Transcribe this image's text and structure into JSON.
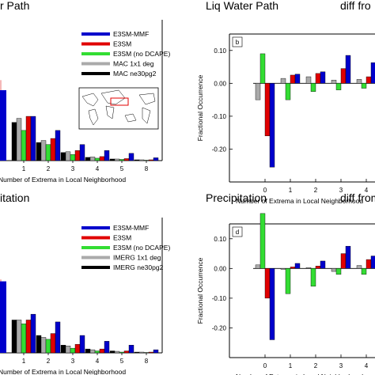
{
  "colors": {
    "blue": "#0000cc",
    "red": "#e00000",
    "green": "#33dd33",
    "gray": "#aaaaaa",
    "black": "#000000",
    "pink": "#f5b8b8",
    "map_box": "#e00000"
  },
  "chart_data": [
    {
      "id": "a",
      "type": "bar",
      "title": "r Path",
      "xlabel": "Number of Extrema in Local Neighborhood",
      "ylabel": "",
      "categories": [
        "1",
        "2",
        "3",
        "4",
        "5",
        "8"
      ],
      "ylim": [
        0,
        0.35
      ],
      "legend_placement": "top-right",
      "inset_map": true,
      "series": [
        {
          "name": "MAC ne30pg2",
          "color_key": "black",
          "values": [
            0.095,
            0.045,
            0.02,
            0.008,
            0.004,
            0.002
          ]
        },
        {
          "name": "MAC 1x1 deg",
          "color_key": "gray",
          "values": [
            0.105,
            0.05,
            0.022,
            0.009,
            0.004,
            0.002
          ]
        },
        {
          "name": "E3SM (no DCAPE)",
          "color_key": "green",
          "values": [
            0.075,
            0.04,
            0.015,
            0.006,
            0.003,
            0.001
          ]
        },
        {
          "name": "E3SM",
          "color_key": "red",
          "values": [
            0.11,
            0.055,
            0.025,
            0.01,
            0.005,
            0.002
          ]
        },
        {
          "name": "E3SM-MMF",
          "color_key": "blue",
          "values": [
            0.11,
            0.075,
            0.04,
            0.025,
            0.018,
            0.007
          ]
        }
      ],
      "partial_bars": {
        "pink": 0.2,
        "blue": 0.175
      }
    },
    {
      "id": "b",
      "type": "bar",
      "title": "Liq Water Path",
      "title_right": "diff fro",
      "letter": "b",
      "xlabel": "Number of Extrema in Local Neighborhood",
      "ylabel": "Fractional Occurrence",
      "categories": [
        "0",
        "1",
        "2",
        "3",
        "4"
      ],
      "yticks": [
        "0.10",
        "0.00",
        "-0.10",
        "-0.20"
      ],
      "ylim": [
        -0.3,
        0.15
      ],
      "series": [
        {
          "name": "gray",
          "color_key": "gray",
          "values": [
            -0.05,
            0.015,
            0.02,
            0.01,
            0.012
          ]
        },
        {
          "name": "green",
          "color_key": "green",
          "values": [
            0.09,
            -0.05,
            -0.025,
            -0.02,
            -0.015
          ]
        },
        {
          "name": "red",
          "color_key": "red",
          "values": [
            -0.16,
            0.025,
            0.03,
            0.045,
            0.02
          ]
        },
        {
          "name": "blue",
          "color_key": "blue",
          "values": [
            -0.255,
            0.028,
            0.035,
            0.085,
            0.063
          ]
        }
      ]
    },
    {
      "id": "c",
      "type": "bar",
      "title": "itation",
      "xlabel": "Number of Extrema in Local Neighborhood",
      "ylabel": "",
      "categories": [
        "1",
        "2",
        "3",
        "4",
        "5",
        "8"
      ],
      "ylim": [
        0,
        0.35
      ],
      "legend_placement": "top-right",
      "series": [
        {
          "name": "IMERG ne30pg2",
          "color_key": "black",
          "values": [
            0.085,
            0.045,
            0.02,
            0.01,
            0.005,
            0.002
          ]
        },
        {
          "name": "IMERG 1x1 deg",
          "color_key": "gray",
          "values": [
            0.085,
            0.04,
            0.018,
            0.008,
            0.004,
            0.002
          ]
        },
        {
          "name": "E3SM (no DCAPE)",
          "color_key": "green",
          "values": [
            0.075,
            0.035,
            0.012,
            0.005,
            0.002,
            0.001
          ]
        },
        {
          "name": "E3SM",
          "color_key": "red",
          "values": [
            0.085,
            0.05,
            0.022,
            0.01,
            0.005,
            0.002
          ]
        },
        {
          "name": "E3SM-MMF",
          "color_key": "blue",
          "values": [
            0.1,
            0.08,
            0.045,
            0.03,
            0.02,
            0.008
          ]
        }
      ],
      "partial_bars": {
        "pink": 0.19,
        "blue": 0.185
      }
    },
    {
      "id": "d",
      "type": "bar",
      "title": "Precipitation",
      "title_right": "diff from",
      "letter": "d",
      "xlabel": "Number of Extrema in Local Neighborhood",
      "ylabel": "Fractional Occurrence",
      "categories": [
        "0",
        "1",
        "2",
        "3",
        "4"
      ],
      "yticks": [
        "0.10",
        "0.00",
        "-0.10",
        "-0.20"
      ],
      "ylim": [
        -0.3,
        0.15
      ],
      "series": [
        {
          "name": "gray",
          "color_key": "gray",
          "values": [
            0.012,
            -0.003,
            0.003,
            -0.01,
            0.01
          ]
        },
        {
          "name": "green",
          "color_key": "green",
          "values": [
            0.185,
            -0.085,
            -0.06,
            -0.02,
            -0.02
          ]
        },
        {
          "name": "red",
          "color_key": "red",
          "values": [
            -0.1,
            0.005,
            0.008,
            0.05,
            0.03
          ]
        },
        {
          "name": "blue",
          "color_key": "blue",
          "values": [
            -0.24,
            0.017,
            0.025,
            0.075,
            0.042
          ]
        }
      ]
    }
  ]
}
